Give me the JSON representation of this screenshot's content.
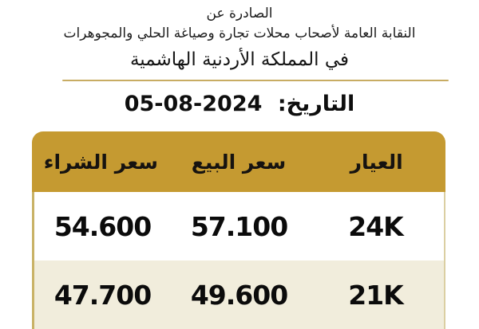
{
  "header": {
    "issued_by": "الصادرة عن",
    "org_name": "النقابة العامة لأصحاب محلات تجارة وصياغة الحلي والمجوهرات",
    "country_line": "في المملكة الأردنية الهاشمية"
  },
  "date": {
    "label": "التاريخ:",
    "value": "05-08-2024"
  },
  "table": {
    "headers": [
      "العيار",
      "سعر البيع",
      "سعر الشراء"
    ],
    "rows": [
      {
        "karat": "24K",
        "sell": "57.100",
        "buy": "54.600"
      },
      {
        "karat": "21K",
        "sell": "49.600",
        "buy": "47.700"
      }
    ]
  },
  "colors": {
    "gold": "#C59A31",
    "cream": "#F1EDDC",
    "separator": "#C8AC63",
    "border-left": "#C9B266",
    "border-right": "#DBCFA2"
  }
}
